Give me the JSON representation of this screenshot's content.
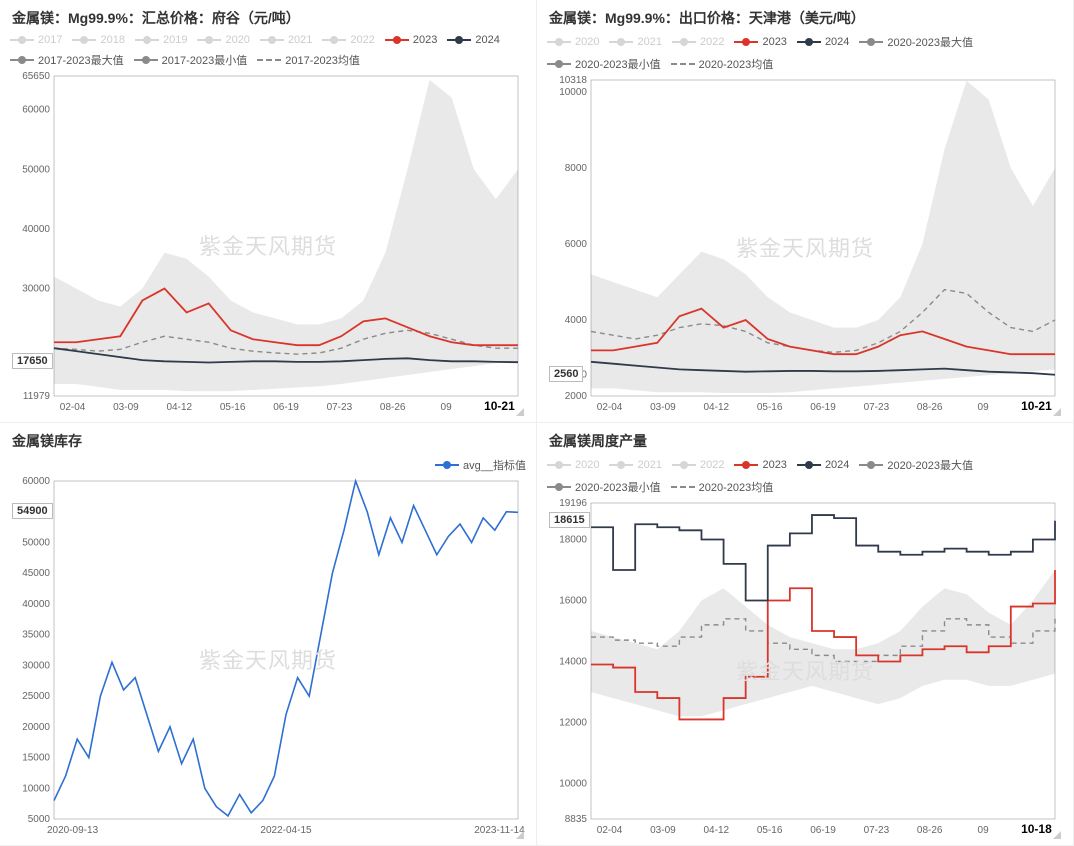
{
  "watermark": "紫金天风期货",
  "colors": {
    "inactive": "#d6d6d6",
    "s2023": "#d9352a",
    "s2024": "#2f3a4a",
    "maxline": "#8a8a8a",
    "minline": "#8a8a8a",
    "avgline": "#8a8a8a",
    "band": "#e9e9e9",
    "axis": "#888",
    "blue": "#2d6fd2",
    "grid": "#f0f0f0"
  },
  "panels": {
    "tl": {
      "title": "金属镁：Mg99.9%：汇总价格：府谷（元/吨）",
      "legend_inactive": [
        "2017",
        "2018",
        "2019",
        "2020",
        "2021",
        "2022"
      ],
      "legend_active": [
        {
          "label": "2023",
          "color": "#d9352a",
          "dot": true
        },
        {
          "label": "2024",
          "color": "#2f3a4a",
          "dot": true
        },
        {
          "label": "2017-2023最大值",
          "color": "#8a8a8a",
          "dot": true
        },
        {
          "label": "2017-2023最小值",
          "color": "#8a8a8a",
          "dot": true
        },
        {
          "label": "2017-2023均值",
          "color": "#8a8a8a",
          "dash": true
        }
      ],
      "ylim": [
        11979,
        65650
      ],
      "yticks": [
        11979,
        17650,
        20000,
        30000,
        40000,
        50000,
        60000,
        65650
      ],
      "ytick_labels": [
        "11979",
        "17650",
        "",
        "30000",
        "40000",
        "50000",
        "60000",
        "65650"
      ],
      "y_badge": {
        "value": "17650",
        "y": 17650
      },
      "xticks": [
        "02-04",
        "03-09",
        "04-12",
        "05-16",
        "06-19",
        "07-23",
        "08-26",
        "09",
        "10-21"
      ],
      "xtick_em_index": 8,
      "band_top": [
        32000,
        30000,
        28000,
        27000,
        30000,
        36000,
        35000,
        32000,
        28000,
        26000,
        25000,
        24000,
        24000,
        25000,
        28000,
        36000,
        50000,
        65000,
        62000,
        50000,
        45000,
        50000
      ],
      "band_bot": [
        14000,
        14000,
        13500,
        13000,
        13000,
        13000,
        12800,
        12800,
        12800,
        13000,
        13200,
        13400,
        13600,
        14000,
        14500,
        15000,
        15500,
        16000,
        16500,
        17000,
        17500,
        17800
      ],
      "s2023": [
        21000,
        21000,
        21500,
        22000,
        28000,
        30000,
        26000,
        27500,
        23000,
        21500,
        21000,
        20500,
        20500,
        22000,
        24500,
        25000,
        23500,
        22000,
        21000,
        20500,
        20500,
        20500
      ],
      "s2024": [
        20000,
        19500,
        19000,
        18500,
        18000,
        17800,
        17700,
        17600,
        17700,
        17800,
        17800,
        17700,
        17700,
        17800,
        18000,
        18200,
        18300,
        18000,
        17800,
        17800,
        17700,
        17650
      ],
      "avg": [
        20000,
        19800,
        19500,
        19800,
        21000,
        22000,
        21500,
        21000,
        20000,
        19500,
        19200,
        19000,
        19200,
        20000,
        21500,
        22500,
        23000,
        22500,
        21500,
        20500,
        20000,
        20000
      ]
    },
    "tr": {
      "title": "金属镁：Mg99.9%：出口价格：天津港（美元/吨）",
      "legend_inactive": [
        "2020",
        "2021",
        "2022"
      ],
      "legend_active": [
        {
          "label": "2023",
          "color": "#d9352a",
          "dot": true
        },
        {
          "label": "2024",
          "color": "#2f3a4a",
          "dot": true
        },
        {
          "label": "2020-2023最大值",
          "color": "#8a8a8a",
          "dot": true
        },
        {
          "label": "2020-2023最小值",
          "color": "#8a8a8a",
          "dot": true
        },
        {
          "label": "2020-2023均值",
          "color": "#8a8a8a",
          "dash": true
        }
      ],
      "ylim": [
        2000,
        10318
      ],
      "yticks": [
        2000,
        2560,
        4000,
        6000,
        8000,
        10000,
        10318
      ],
      "ytick_labels": [
        "2000",
        "2560",
        "4000",
        "6000",
        "8000",
        "10000",
        "10318"
      ],
      "y_badge": {
        "value": "2560",
        "y": 2560
      },
      "xticks": [
        "02-04",
        "03-09",
        "04-12",
        "05-16",
        "06-19",
        "07-23",
        "08-26",
        "09",
        "10-21"
      ],
      "xtick_em_index": 8,
      "band_top": [
        5200,
        5000,
        4800,
        4600,
        5200,
        5800,
        5600,
        5200,
        4600,
        4200,
        4000,
        3800,
        3800,
        4000,
        4600,
        6000,
        8500,
        10300,
        9800,
        8000,
        7000,
        8000
      ],
      "band_bot": [
        2200,
        2200,
        2150,
        2100,
        2100,
        2100,
        2080,
        2080,
        2080,
        2100,
        2150,
        2200,
        2250,
        2300,
        2350,
        2400,
        2450,
        2500,
        2550,
        2600,
        2650,
        2700
      ],
      "s2023": [
        3200,
        3200,
        3300,
        3400,
        4100,
        4300,
        3800,
        4000,
        3500,
        3300,
        3200,
        3100,
        3100,
        3300,
        3600,
        3700,
        3500,
        3300,
        3200,
        3100,
        3100,
        3100
      ],
      "s2024": [
        2900,
        2850,
        2800,
        2750,
        2700,
        2680,
        2660,
        2640,
        2650,
        2660,
        2660,
        2650,
        2650,
        2660,
        2680,
        2700,
        2720,
        2680,
        2640,
        2620,
        2600,
        2560
      ],
      "avg": [
        3700,
        3600,
        3500,
        3600,
        3800,
        3900,
        3850,
        3700,
        3400,
        3300,
        3200,
        3150,
        3200,
        3400,
        3700,
        4200,
        4800,
        4700,
        4200,
        3800,
        3700,
        4000
      ],
      "avg_dash": true
    },
    "bl": {
      "title": "金属镁库存",
      "legend_active": [
        {
          "label": "avg__指标值",
          "color": "#2d6fd2",
          "dot": true
        }
      ],
      "ylim": [
        5000,
        60000
      ],
      "yticks": [
        5000,
        10000,
        15000,
        20000,
        25000,
        30000,
        35000,
        40000,
        45000,
        50000,
        54900,
        55000,
        60000
      ],
      "ytick_labels": [
        "5000",
        "10000",
        "15000",
        "20000",
        "25000",
        "30000",
        "35000",
        "40000",
        "45000",
        "50000",
        "54900",
        "",
        "60000"
      ],
      "y_badge": {
        "value": "54900",
        "y": 54900
      },
      "xticks": [
        "2020-09-13",
        "2022-04-15",
        "2023-11-14"
      ],
      "series": [
        8000,
        12000,
        18000,
        15000,
        25000,
        30500,
        26000,
        28000,
        22000,
        16000,
        20000,
        14000,
        18000,
        10000,
        7000,
        5500,
        9000,
        6000,
        8000,
        12000,
        22000,
        28000,
        25000,
        35000,
        45000,
        52000,
        60000,
        55000,
        48000,
        54000,
        50000,
        56000,
        52000,
        48000,
        51000,
        53000,
        50000,
        54000,
        52000,
        55000,
        54900
      ]
    },
    "br": {
      "title": "金属镁周度产量",
      "legend_inactive": [
        "2020",
        "2021",
        "2022"
      ],
      "legend_active": [
        {
          "label": "2023",
          "color": "#d9352a",
          "dot": true
        },
        {
          "label": "2024",
          "color": "#2f3a4a",
          "dot": true
        },
        {
          "label": "2020-2023最大值",
          "color": "#8a8a8a",
          "dot": true
        },
        {
          "label": "2020-2023最小值",
          "color": "#8a8a8a",
          "dot": true
        },
        {
          "label": "2020-2023均值",
          "color": "#8a8a8a",
          "dash": true
        }
      ],
      "ylim": [
        8835,
        19196
      ],
      "yticks": [
        8835,
        10000,
        12000,
        14000,
        16000,
        18000,
        18615,
        19196
      ],
      "ytick_labels": [
        "8835",
        "10000",
        "12000",
        "14000",
        "16000",
        "18000",
        "18615",
        "19196"
      ],
      "y_badge": {
        "value": "18615",
        "y": 18615
      },
      "xticks": [
        "02-04",
        "03-09",
        "04-12",
        "05-16",
        "06-19",
        "07-23",
        "08-26",
        "09",
        "10-18"
      ],
      "xtick_em_index": 8,
      "band_top": [
        15000,
        14800,
        14600,
        14400,
        15000,
        16000,
        16400,
        15800,
        15200,
        14800,
        14600,
        14400,
        14400,
        14600,
        15000,
        15800,
        16400,
        16200,
        15600,
        15200,
        16000,
        17000
      ],
      "band_bot": [
        13000,
        12800,
        12600,
        12400,
        12200,
        12200,
        12400,
        12600,
        12800,
        13000,
        13200,
        13000,
        12800,
        12600,
        12800,
        13200,
        13400,
        13400,
        13200,
        13200,
        13400,
        13600
      ],
      "s2023": [
        13900,
        13800,
        13000,
        12800,
        12100,
        12100,
        12800,
        13500,
        16000,
        16400,
        15000,
        14800,
        14200,
        14000,
        14200,
        14400,
        14500,
        14300,
        14500,
        15800,
        15900,
        17000
      ],
      "s2024": [
        18400,
        17000,
        18500,
        18400,
        18300,
        18000,
        17200,
        16000,
        17800,
        18200,
        18800,
        18700,
        17800,
        17600,
        17500,
        17600,
        17700,
        17600,
        17500,
        17600,
        18000,
        18615
      ],
      "avg": [
        14800,
        14700,
        14600,
        14500,
        14800,
        15200,
        15400,
        15000,
        14600,
        14400,
        14200,
        14000,
        14000,
        14200,
        14500,
        15000,
        15400,
        15200,
        14800,
        14600,
        15000,
        15400
      ]
    }
  }
}
